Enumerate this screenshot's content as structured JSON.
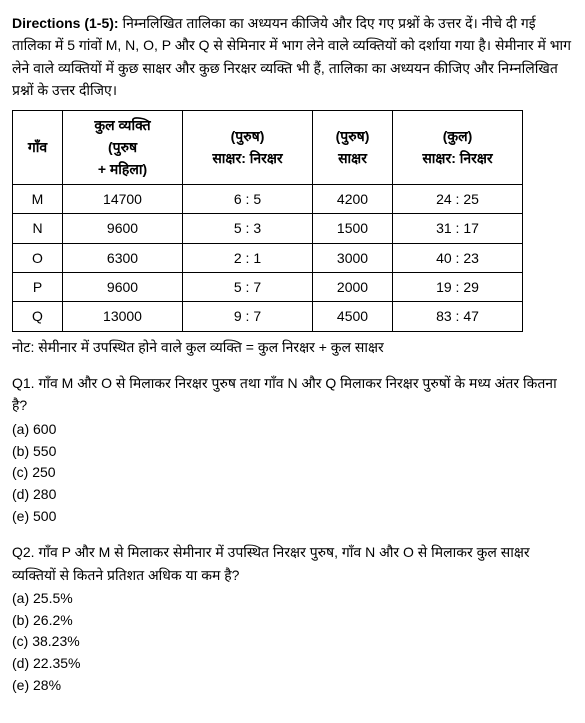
{
  "directions": {
    "label": "Directions (1-5):",
    "text": " निम्नलिखित तालिका का अध्ययन कीजिये और दिए गए प्रश्नों के उत्तर दें। नीचे दी गई तालिका में 5 गांवों M, N, O, P और Q से सेमिनार में भाग लेने वाले व्यक्तियों को दर्शाया गया है। सेमीनार में भाग लेने वाले व्यक्तियों में कुछ साक्षर और कुछ निरक्षर व्यक्ति भी हैं, तालिका का अध्ययन कीजिए और निम्नलिखित प्रश्नों के उत्तर दीजिए।"
  },
  "table": {
    "headers": {
      "village": "गाँव",
      "total_line1": "कुल व्यक्ति",
      "total_line2": "(पुरुष",
      "total_line3": "+ महिला)",
      "male_label": "(पुरुष)",
      "ratio_label": "साक्षर: निरक्षर",
      "literate_label": "साक्षर",
      "kul_label": "(कुल)",
      "kul_ratio": "साक्षर: निरक्षर"
    },
    "rows": [
      {
        "village": "M",
        "total": "14700",
        "ratio": "6 : 5",
        "literate": "4200",
        "kul": "24 : 25"
      },
      {
        "village": "N",
        "total": "9600",
        "ratio": "5 : 3",
        "literate": "1500",
        "kul": "31 : 17"
      },
      {
        "village": "O",
        "total": "6300",
        "ratio": "2 : 1",
        "literate": "3000",
        "kul": "40 : 23"
      },
      {
        "village": "P",
        "total": "9600",
        "ratio": "5 : 7",
        "literate": "2000",
        "kul": "19 : 29"
      },
      {
        "village": "Q",
        "total": "13000",
        "ratio": "9 : 7",
        "literate": "4500",
        "kul": "83 : 47"
      }
    ]
  },
  "note": "नोट: सेमीनार में उपस्थित होने वाले कुल व्यक्ति = कुल निरक्षर + कुल साक्षर",
  "q1": {
    "label": "Q1. ",
    "text": "गाँव M और O से मिलाकर निरक्षर पुरुष तथा गाँव N और Q मिलाकर निरक्षर पुरुषों के मध्य अंतर कितना है?",
    "a": "(a) 600",
    "b": "(b) 550",
    "c": "(c) 250",
    "d": "(d) 280",
    "e": "(e) 500"
  },
  "q2": {
    "label": "Q2. ",
    "text": "गाँव P और M से मिलाकर सेमीनार में उपस्थित निरक्षर पुरुष, गाँव N और O से मिलाकर कुल साक्षर व्यक्तियों से कितने प्रतिशत अधिक या कम है?",
    "a": "(a) 25.5%",
    "b": "(b) 26.2%",
    "c": "(c) 38.23%",
    "d": "(d) 22.35%",
    "e": "(e) 28%"
  }
}
